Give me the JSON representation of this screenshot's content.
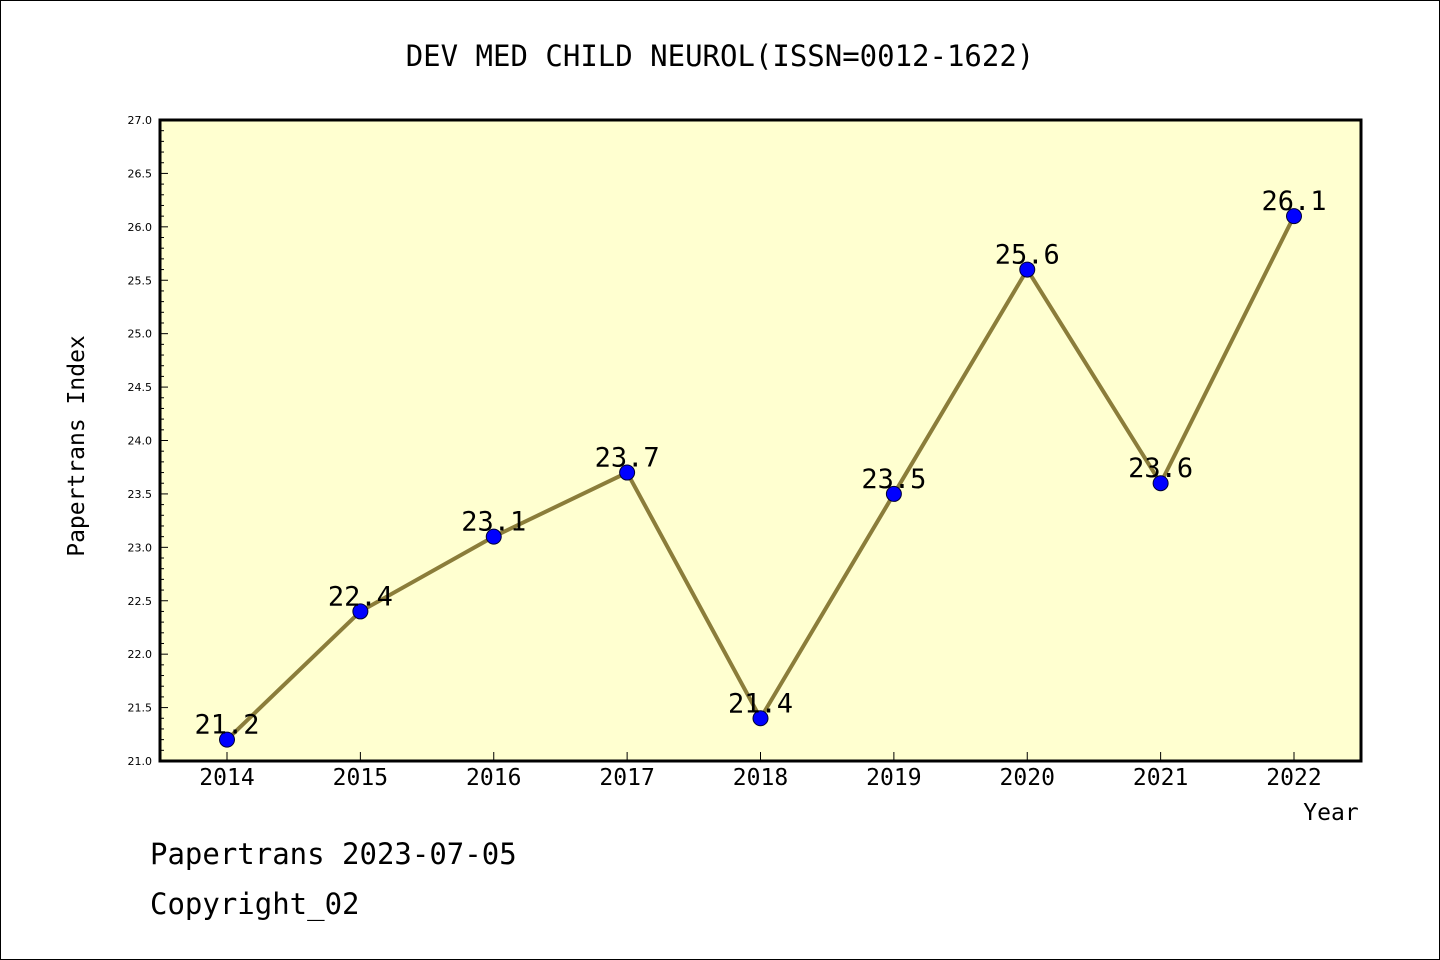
{
  "chart_data": {
    "type": "line",
    "title": "DEV MED CHILD NEUROL(ISSN=0012-1622)",
    "xlabel": "Year",
    "ylabel": "Papertrans Index",
    "x": [
      "2014",
      "2015",
      "2016",
      "2017",
      "2018",
      "2019",
      "2020",
      "2021",
      "2022"
    ],
    "series": [
      {
        "values": [
          21.2,
          22.4,
          23.1,
          23.7,
          21.4,
          23.5,
          25.6,
          23.6,
          26.1
        ],
        "labels": [
          "21.2",
          "22.4",
          "23.1",
          "23.7",
          "21.4",
          "23.5",
          "25.6",
          "23.6",
          "26.1"
        ],
        "line_color": "#8b7d3a",
        "marker_color": "#0000ff"
      }
    ],
    "ylim": [
      21.0,
      27.0
    ],
    "yticks": [
      "21.0",
      "21.5",
      "22.0",
      "22.5",
      "23.0",
      "23.5",
      "24.0",
      "24.5",
      "25.0",
      "25.5",
      "26.0",
      "26.5",
      "27.0"
    ],
    "plot_background": "#ffffd0",
    "grid": false,
    "legend": "none"
  },
  "footer": {
    "line1": "Papertrans 2023-07-05",
    "line2": "Copyright_02"
  }
}
